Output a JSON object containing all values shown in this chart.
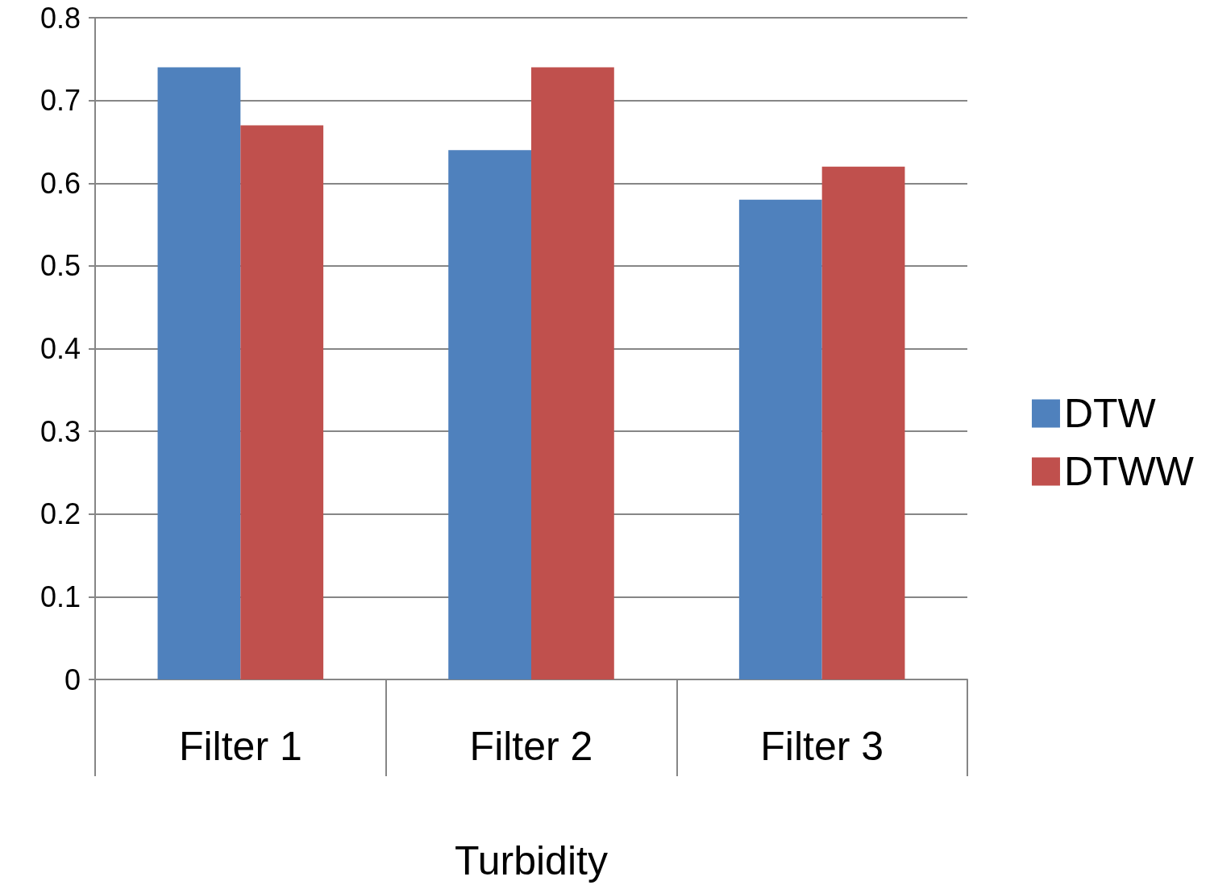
{
  "chart_data": {
    "type": "bar",
    "xlabel": "Turbidity",
    "categories": [
      "Filter 1",
      "Filter 2",
      "Filter 3"
    ],
    "series": [
      {
        "name": "DTW",
        "color": "#4f81bd",
        "values": [
          0.74,
          0.64,
          0.58
        ]
      },
      {
        "name": "DTWW",
        "color": "#c0504d",
        "values": [
          0.67,
          0.74,
          0.62
        ]
      }
    ],
    "ylim": [
      0,
      0.8
    ],
    "yticks": [
      0,
      0.1,
      0.2,
      0.3,
      0.4,
      0.5,
      0.6,
      0.7,
      0.8
    ],
    "grid": "y",
    "legend": "right"
  }
}
